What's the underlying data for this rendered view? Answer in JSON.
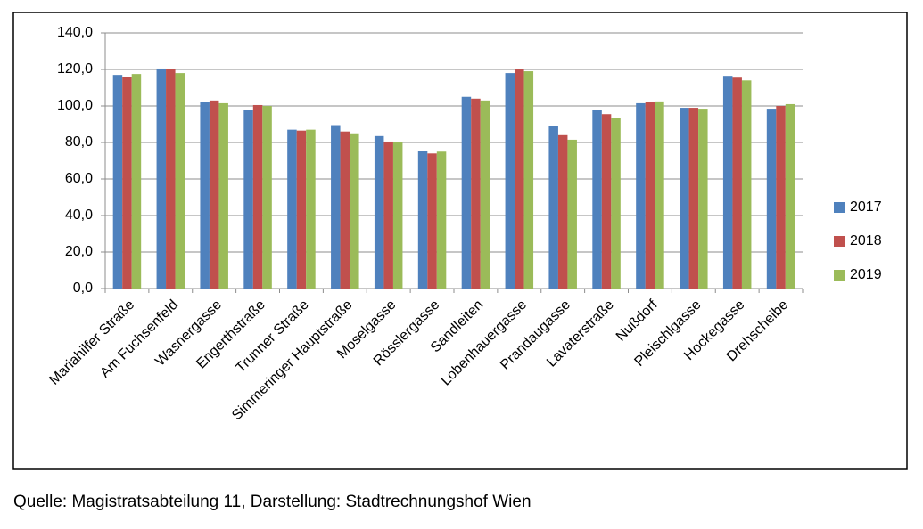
{
  "chart_data": {
    "type": "bar",
    "source": "Quelle: Magistratsabteilung 11, Darstellung: Stadtrechnungshof Wien",
    "categories": [
      "Mariahilfer Straße",
      "Am Fuchsenfeld",
      "Wasnergasse",
      "Engerthstraße",
      "Trunner Straße",
      "Simmeringer Hauptstraße",
      "Moselgasse",
      "Rösslergasse",
      "Sandleiten",
      "Lobenhauergasse",
      "Prandaugasse",
      "Lavaterstraße",
      "Nußdorf",
      "Pleischlgasse",
      "Hockegasse",
      "Drehscheibe"
    ],
    "series": [
      {
        "name": "2017",
        "color": "#4f81bd",
        "values": [
          117,
          120.5,
          102,
          98,
          87,
          89.5,
          83.5,
          75.5,
          105,
          118,
          89,
          98,
          101.5,
          99,
          116.5,
          98.5
        ]
      },
      {
        "name": "2018",
        "color": "#c0504d",
        "values": [
          116,
          120,
          103,
          100.5,
          86.5,
          86,
          80.5,
          74,
          104,
          120,
          84,
          95.5,
          102,
          99,
          115.5,
          100
        ]
      },
      {
        "name": "2019",
        "color": "#9bbb59",
        "values": [
          117.5,
          118,
          101.5,
          100,
          87,
          85,
          80,
          75,
          103,
          119,
          81.5,
          93.5,
          102.5,
          98.5,
          114,
          101
        ]
      }
    ],
    "ylim": [
      0,
      140
    ],
    "yticks": [
      {
        "value": 0,
        "label": "0,0"
      },
      {
        "value": 20,
        "label": "20,0"
      },
      {
        "value": 40,
        "label": "40,0"
      },
      {
        "value": 60,
        "label": "60,0"
      },
      {
        "value": 80,
        "label": "80,0"
      },
      {
        "value": 100,
        "label": "100,0"
      },
      {
        "value": 120,
        "label": "120,0"
      },
      {
        "value": 140,
        "label": "140,0"
      }
    ],
    "grid": true,
    "legend": "right"
  }
}
